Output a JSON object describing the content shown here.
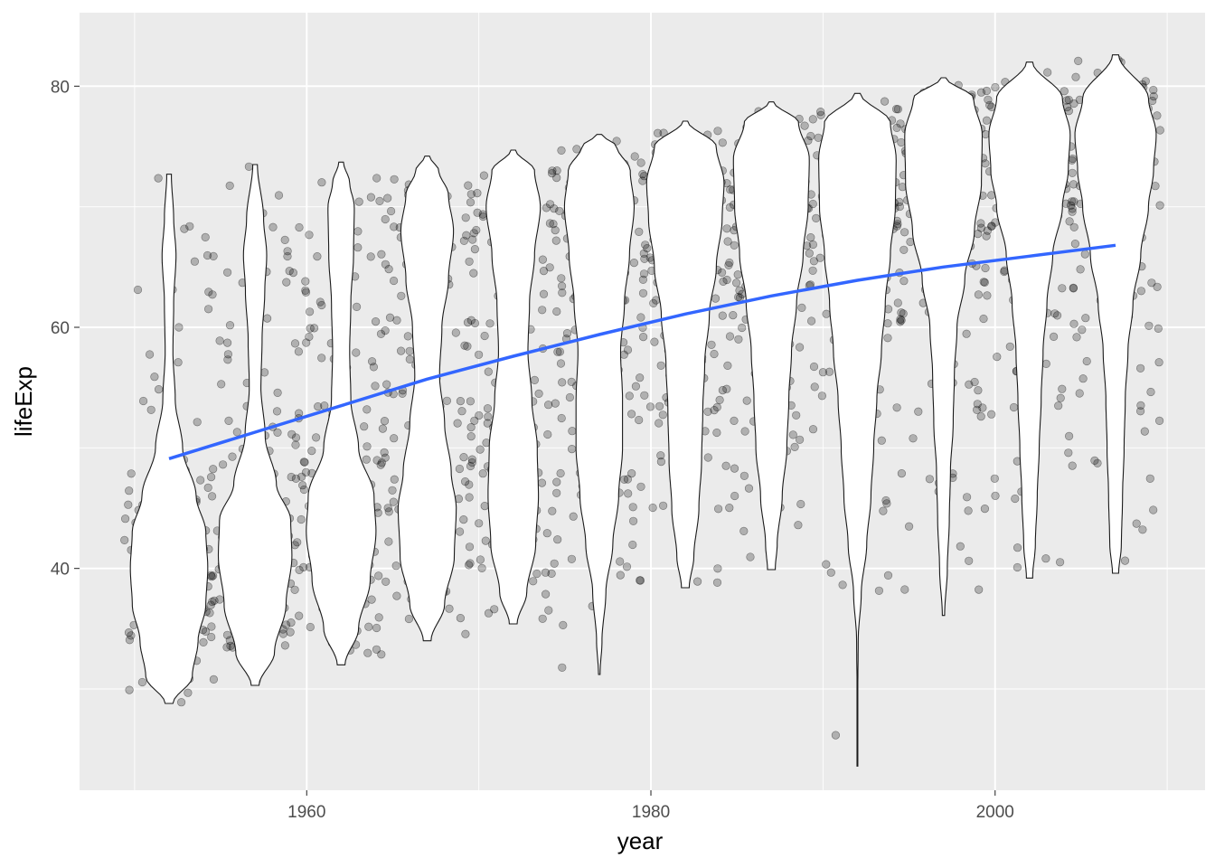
{
  "chart_data": {
    "type": "violin",
    "xlabel": "year",
    "ylabel": "lifeExp",
    "xlim": [
      1946.8,
      2012.2
    ],
    "ylim": [
      21.6,
      86.1
    ],
    "x_ticks": [
      1960,
      1980,
      2000
    ],
    "y_ticks": [
      40,
      60,
      80
    ],
    "grid": true,
    "legend": "none",
    "colors": {
      "panel": "#ebebeb",
      "grid": "#ffffff",
      "violin_fill": "#ffffff",
      "violin_stroke": "#1a1a1a",
      "points": "#000000",
      "trend": "#3366ff"
    },
    "violins": [
      {
        "year": 1952,
        "min": 28.8,
        "max": 72.7,
        "profile": [
          [
            28.8,
            0.1
          ],
          [
            31,
            0.6
          ],
          [
            34,
            0.75
          ],
          [
            37,
            0.95
          ],
          [
            40,
            1.0
          ],
          [
            43,
            0.95
          ],
          [
            46,
            0.7
          ],
          [
            50,
            0.35
          ],
          [
            54,
            0.16
          ],
          [
            58,
            0.1
          ],
          [
            62,
            0.12
          ],
          [
            66,
            0.18
          ],
          [
            69,
            0.12
          ],
          [
            72.7,
            0.06
          ]
        ]
      },
      {
        "year": 1957,
        "min": 30.3,
        "max": 73.5,
        "profile": [
          [
            30.3,
            0.1
          ],
          [
            33,
            0.5
          ],
          [
            37,
            0.8
          ],
          [
            41,
            0.95
          ],
          [
            44,
            0.92
          ],
          [
            47,
            0.55
          ],
          [
            51,
            0.26
          ],
          [
            55,
            0.15
          ],
          [
            59,
            0.18
          ],
          [
            63,
            0.25
          ],
          [
            66,
            0.3
          ],
          [
            69,
            0.22
          ],
          [
            73.5,
            0.06
          ]
        ]
      },
      {
        "year": 1962,
        "min": 32.0,
        "max": 73.7,
        "profile": [
          [
            32,
            0.1
          ],
          [
            35,
            0.45
          ],
          [
            39,
            0.75
          ],
          [
            43,
            0.9
          ],
          [
            46,
            0.85
          ],
          [
            50,
            0.45
          ],
          [
            54,
            0.25
          ],
          [
            58,
            0.22
          ],
          [
            62,
            0.25
          ],
          [
            66,
            0.32
          ],
          [
            70,
            0.34
          ],
          [
            72,
            0.22
          ],
          [
            73.7,
            0.06
          ]
        ]
      },
      {
        "year": 1967,
        "min": 34.0,
        "max": 74.2,
        "profile": [
          [
            34,
            0.1
          ],
          [
            37,
            0.45
          ],
          [
            41,
            0.7
          ],
          [
            45,
            0.75
          ],
          [
            48,
            0.62
          ],
          [
            52,
            0.45
          ],
          [
            56,
            0.32
          ],
          [
            60,
            0.38
          ],
          [
            64,
            0.55
          ],
          [
            68,
            0.68
          ],
          [
            71,
            0.55
          ],
          [
            73,
            0.3
          ],
          [
            74.2,
            0.06
          ]
        ]
      },
      {
        "year": 1972,
        "min": 35.4,
        "max": 74.7,
        "profile": [
          [
            35.4,
            0.1
          ],
          [
            38,
            0.35
          ],
          [
            42,
            0.58
          ],
          [
            46,
            0.65
          ],
          [
            50,
            0.62
          ],
          [
            54,
            0.48
          ],
          [
            58,
            0.38
          ],
          [
            62,
            0.42
          ],
          [
            66,
            0.55
          ],
          [
            70,
            0.7
          ],
          [
            73,
            0.55
          ],
          [
            74.7,
            0.06
          ]
        ]
      },
      {
        "year": 1977,
        "min": 31.2,
        "max": 76.0,
        "profile": [
          [
            31.2,
            0.02
          ],
          [
            34,
            0.07
          ],
          [
            38,
            0.17
          ],
          [
            42,
            0.35
          ],
          [
            46,
            0.5
          ],
          [
            50,
            0.6
          ],
          [
            54,
            0.6
          ],
          [
            58,
            0.55
          ],
          [
            62,
            0.65
          ],
          [
            66,
            0.78
          ],
          [
            70,
            0.9
          ],
          [
            73,
            0.8
          ],
          [
            75,
            0.45
          ],
          [
            76,
            0.06
          ]
        ]
      },
      {
        "year": 1982,
        "min": 38.4,
        "max": 77.1,
        "profile": [
          [
            38.4,
            0.1
          ],
          [
            41,
            0.22
          ],
          [
            45,
            0.35
          ],
          [
            49,
            0.42
          ],
          [
            53,
            0.45
          ],
          [
            57,
            0.5
          ],
          [
            61,
            0.62
          ],
          [
            65,
            0.8
          ],
          [
            69,
            0.95
          ],
          [
            72,
            1.0
          ],
          [
            75,
            0.8
          ],
          [
            77.1,
            0.06
          ]
        ]
      },
      {
        "year": 1987,
        "min": 39.9,
        "max": 78.7,
        "profile": [
          [
            39.9,
            0.1
          ],
          [
            42,
            0.15
          ],
          [
            46,
            0.28
          ],
          [
            50,
            0.4
          ],
          [
            54,
            0.45
          ],
          [
            58,
            0.52
          ],
          [
            62,
            0.65
          ],
          [
            66,
            0.82
          ],
          [
            70,
            0.95
          ],
          [
            74,
            0.98
          ],
          [
            77,
            0.7
          ],
          [
            78.7,
            0.06
          ]
        ]
      },
      {
        "year": 1992,
        "min": 23.6,
        "max": 79.4,
        "profile": [
          [
            23.6,
            0.01
          ],
          [
            30,
            0.01
          ],
          [
            34,
            0.02
          ],
          [
            38,
            0.1
          ],
          [
            42,
            0.24
          ],
          [
            46,
            0.35
          ],
          [
            50,
            0.42
          ],
          [
            54,
            0.5
          ],
          [
            58,
            0.62
          ],
          [
            62,
            0.72
          ],
          [
            66,
            0.85
          ],
          [
            70,
            0.98
          ],
          [
            74,
            1.0
          ],
          [
            77,
            0.85
          ],
          [
            79.4,
            0.07
          ]
        ]
      },
      {
        "year": 1997,
        "min": 36.1,
        "max": 80.7,
        "profile": [
          [
            36.1,
            0.03
          ],
          [
            40,
            0.1
          ],
          [
            44,
            0.15
          ],
          [
            48,
            0.18
          ],
          [
            52,
            0.25
          ],
          [
            56,
            0.28
          ],
          [
            60,
            0.35
          ],
          [
            64,
            0.55
          ],
          [
            68,
            0.8
          ],
          [
            72,
            0.98
          ],
          [
            76,
            1.0
          ],
          [
            79,
            0.78
          ],
          [
            80.7,
            0.06
          ]
        ]
      },
      {
        "year": 2002,
        "min": 39.2,
        "max": 82.0,
        "profile": [
          [
            39.2,
            0.08
          ],
          [
            42,
            0.15
          ],
          [
            46,
            0.2
          ],
          [
            50,
            0.25
          ],
          [
            54,
            0.3
          ],
          [
            58,
            0.35
          ],
          [
            62,
            0.45
          ],
          [
            66,
            0.6
          ],
          [
            70,
            0.85
          ],
          [
            73,
            1.0
          ],
          [
            76,
            1.05
          ],
          [
            79,
            0.85
          ],
          [
            82,
            0.08
          ]
        ]
      },
      {
        "year": 2007,
        "min": 39.6,
        "max": 82.6,
        "profile": [
          [
            39.6,
            0.08
          ],
          [
            42,
            0.15
          ],
          [
            46,
            0.18
          ],
          [
            50,
            0.22
          ],
          [
            54,
            0.25
          ],
          [
            58,
            0.32
          ],
          [
            62,
            0.45
          ],
          [
            66,
            0.65
          ],
          [
            70,
            0.85
          ],
          [
            73,
            0.98
          ],
          [
            76,
            1.05
          ],
          [
            79,
            0.85
          ],
          [
            82.6,
            0.08
          ]
        ]
      }
    ],
    "points": {
      "n_per_year": 142,
      "jitter_years": 2.6,
      "opacity": 0.25
    },
    "trend": {
      "x": [
        1952,
        1957,
        1962,
        1967,
        1972,
        1977,
        1982,
        1987,
        1992,
        1997,
        2002,
        2007
      ],
      "y": [
        49.1,
        51.3,
        53.5,
        55.7,
        57.6,
        59.4,
        61.1,
        62.6,
        63.9,
        65.0,
        65.9,
        66.8
      ]
    }
  }
}
